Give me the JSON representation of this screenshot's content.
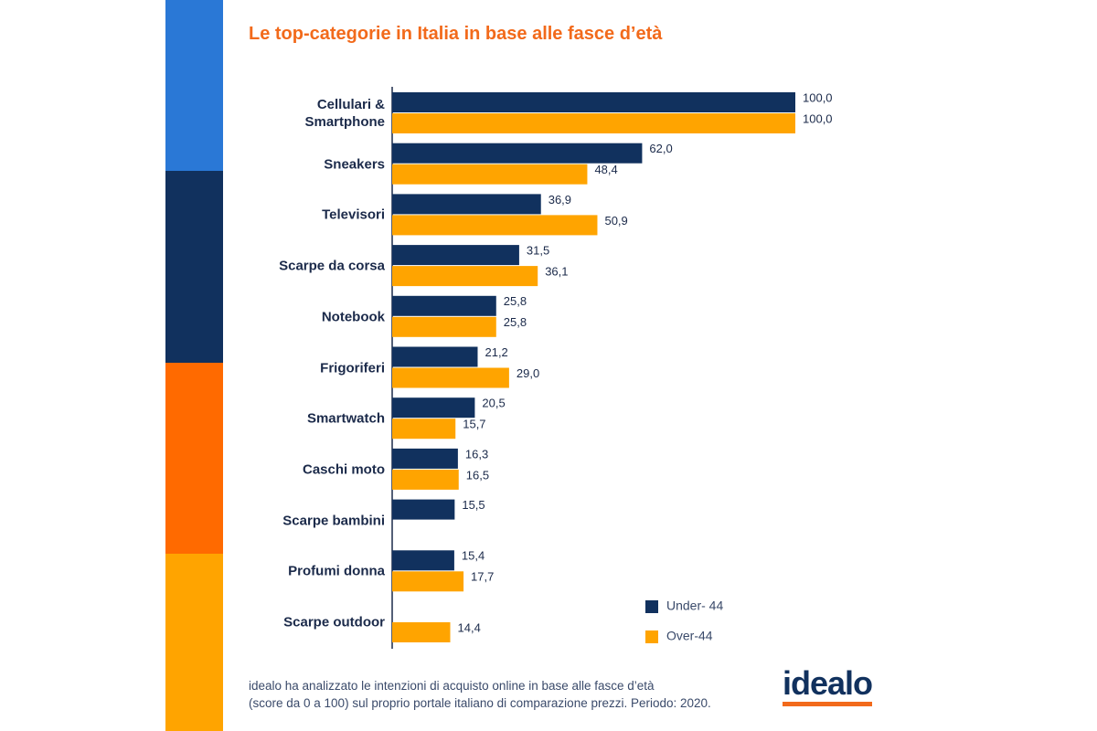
{
  "chart_data": {
    "type": "hbar",
    "title": "Le top-categorie in Italia in base alle fasce d’età",
    "categories": [
      "Cellulari &\nSmartphone",
      "Sneakers",
      "Televisori",
      "Scarpe da corsa",
      "Notebook",
      "Frigoriferi",
      "Smartwatch",
      "Caschi moto",
      "Scarpe bambini",
      "Profumi donna",
      "Scarpe outdoor"
    ],
    "series": [
      {
        "name": "Under- 44",
        "color": "#11315e",
        "values": [
          100.0,
          62.0,
          36.9,
          31.5,
          25.8,
          21.2,
          20.5,
          16.3,
          15.5,
          15.4,
          null
        ],
        "value_labels": [
          "100,0",
          "62,0",
          "36,9",
          "31,5",
          "25,8",
          "21,2",
          "20,5",
          "16,3",
          "15,5",
          "15,4",
          null
        ]
      },
      {
        "name": "Over-44",
        "color": "#ffa400",
        "values": [
          100.0,
          48.4,
          50.9,
          36.1,
          25.8,
          29.0,
          15.7,
          16.5,
          null,
          17.7,
          14.4
        ],
        "value_labels": [
          "100,0",
          "48,4",
          "50,9",
          "36,1",
          "25,8",
          "29,0",
          "15,7",
          "16,5",
          null,
          "17,7",
          "14,4"
        ]
      }
    ],
    "xlim": [
      0,
      100
    ]
  },
  "footer": "idealo ha analizzato le intenzioni di acquisto online in base alle fasce d’età\n(score da 0 a 100) sul proprio portale italiano di comparazione prezzi. Periodo: 2020.",
  "logo": "idealo"
}
